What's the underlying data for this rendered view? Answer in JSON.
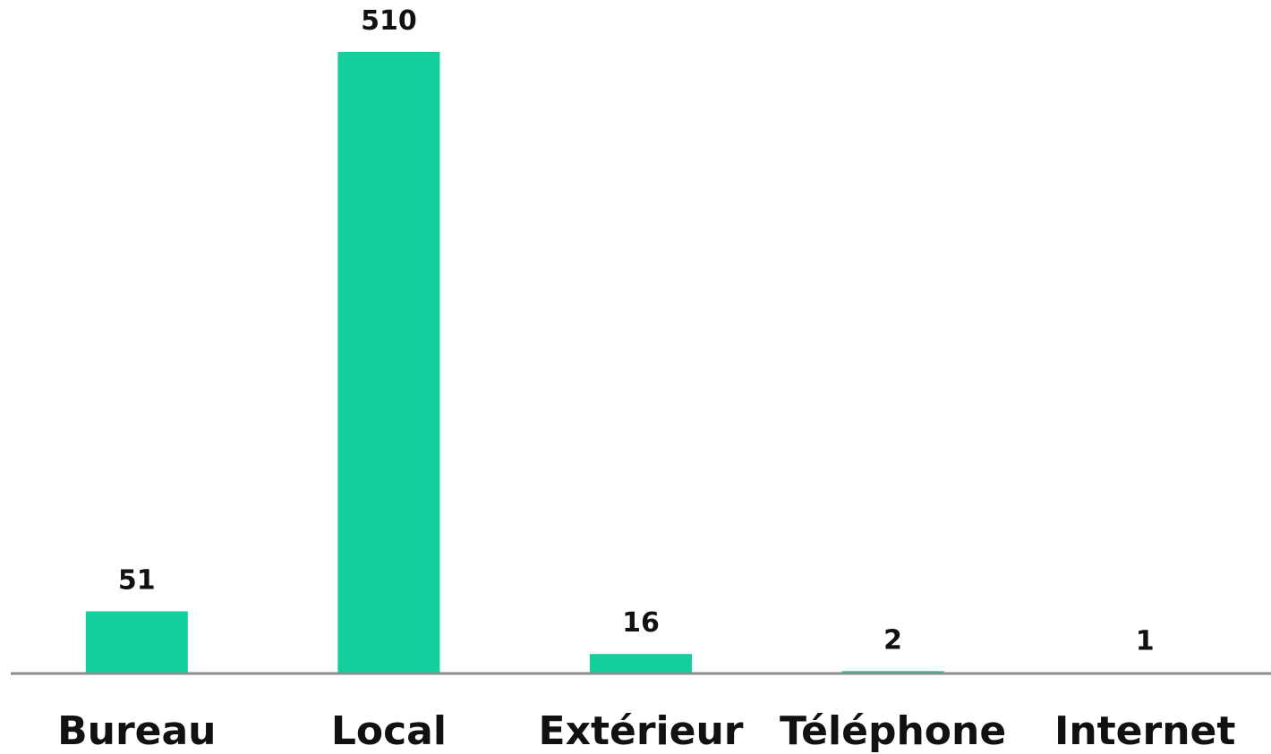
{
  "chart_data": {
    "type": "bar",
    "categories": [
      "Bureau",
      "Local",
      "Extérieur",
      "Téléphone",
      "Internet"
    ],
    "values": [
      51,
      510,
      16,
      2,
      1
    ],
    "data_labels": [
      "51",
      "510",
      "16",
      "2",
      "1"
    ],
    "title": "",
    "xlabel": "",
    "ylabel": "",
    "ylim": [
      0,
      510
    ],
    "grid": false,
    "legend": "none",
    "colors": {
      "bar": "#12CF9B",
      "axis": "#8C8C8C",
      "text": "#111111",
      "background": "#FFFFFF"
    }
  }
}
